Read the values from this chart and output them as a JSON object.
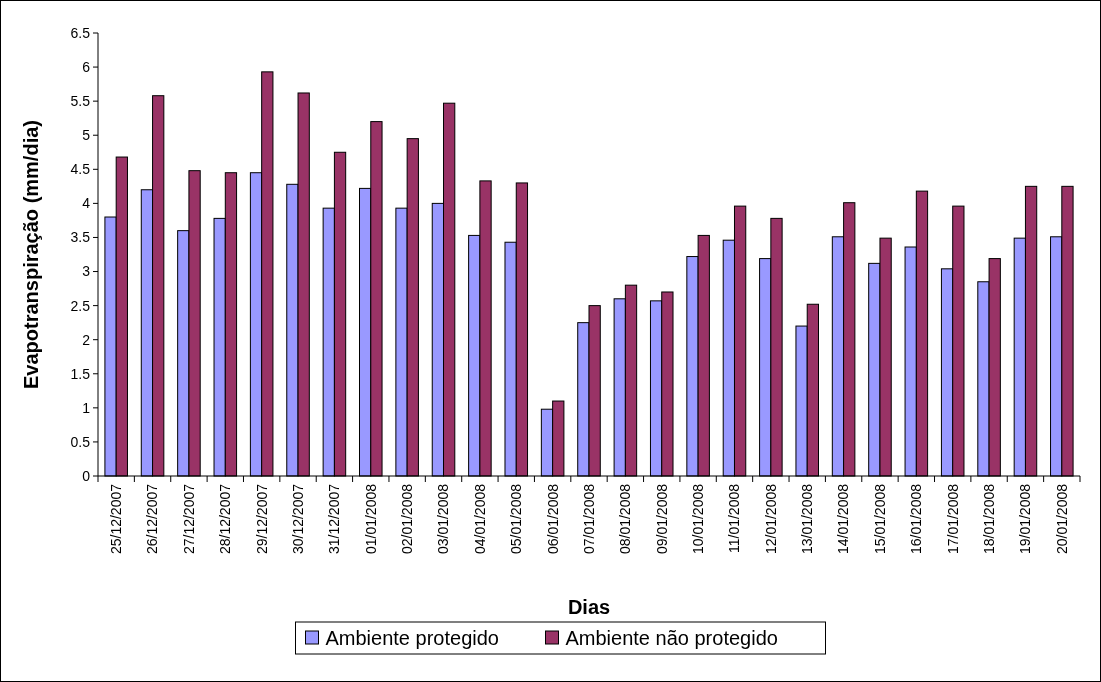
{
  "chart_data": {
    "type": "bar",
    "xlabel": "Dias",
    "ylabel": "Evapotranspiração (mm/dia)",
    "categories": [
      "25/12/2007",
      "26/12/2007",
      "27/12/2007",
      "28/12/2007",
      "29/12/2007",
      "30/12/2007",
      "31/12/2007",
      "01/01/2008",
      "02/01/2008",
      "03/01/2008",
      "04/01/2008",
      "05/01/2008",
      "06/01/2008",
      "07/01/2008",
      "08/01/2008",
      "09/01/2008",
      "10/01/2008",
      "11/01/2008",
      "12/01/2008",
      "13/01/2008",
      "14/01/2008",
      "15/01/2008",
      "16/01/2008",
      "17/01/2008",
      "18/01/2008",
      "19/01/2008",
      "20/01/2008"
    ],
    "series": [
      {
        "name": "Ambiente protegido",
        "color": "#9999ff",
        "values": [
          3.8,
          4.2,
          3.6,
          3.78,
          4.45,
          4.28,
          3.93,
          4.22,
          3.93,
          4.0,
          3.53,
          3.43,
          0.98,
          2.25,
          2.6,
          2.57,
          3.22,
          3.46,
          3.19,
          2.2,
          3.51,
          3.12,
          3.36,
          3.04,
          2.85,
          3.49,
          3.51
        ]
      },
      {
        "name": "Ambiente não protegido",
        "color": "#993366",
        "values": [
          4.68,
          5.58,
          4.48,
          4.45,
          5.93,
          5.62,
          4.75,
          5.2,
          4.95,
          5.47,
          4.33,
          4.3,
          1.1,
          2.5,
          2.8,
          2.7,
          3.53,
          3.96,
          3.78,
          2.52,
          4.01,
          3.49,
          4.18,
          3.96,
          3.19,
          4.25,
          4.25
        ]
      }
    ],
    "ylim": [
      0,
      6.5
    ],
    "yticks": [
      0,
      0.5,
      1,
      1.5,
      2,
      2.5,
      3,
      3.5,
      4,
      4.5,
      5,
      5.5,
      6,
      6.5
    ],
    "grid": false,
    "legend": "bottom"
  }
}
